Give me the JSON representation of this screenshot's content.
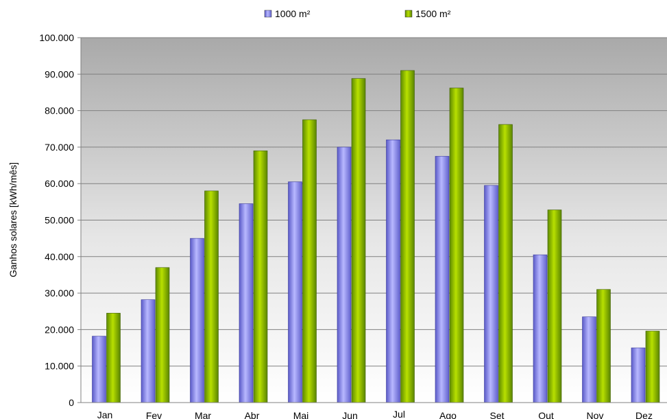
{
  "chart_data": {
    "type": "bar",
    "title": "",
    "xlabel": "",
    "ylabel": "Ganhos solares [kWh/mês]",
    "categories": [
      "Jan",
      "Fev",
      "Mar",
      "Abr",
      "Mai",
      "Jun",
      "Jul",
      "Ago",
      "Set",
      "Out",
      "Nov",
      "Dez"
    ],
    "series": [
      {
        "name": "1000 m²",
        "color": "#8080e8",
        "values": [
          18200,
          28200,
          45000,
          54500,
          60500,
          70000,
          72000,
          67500,
          59500,
          40500,
          23500,
          15000
        ]
      },
      {
        "name": "1500 m²",
        "color": "#88b800",
        "values": [
          24500,
          37000,
          58000,
          69000,
          77500,
          88800,
          91000,
          86200,
          76200,
          52800,
          31000,
          19600
        ]
      }
    ],
    "ylim": [
      0,
      100000
    ],
    "yticks": [
      0,
      10000,
      20000,
      30000,
      40000,
      50000,
      60000,
      70000,
      80000,
      90000,
      100000
    ],
    "ytick_labels": [
      "0",
      "10.000",
      "20.000",
      "30.000",
      "40.000",
      "50.000",
      "60.000",
      "70.000",
      "80.000",
      "90.000",
      "100.000"
    ],
    "grid": true,
    "legend_position": "top-center"
  }
}
